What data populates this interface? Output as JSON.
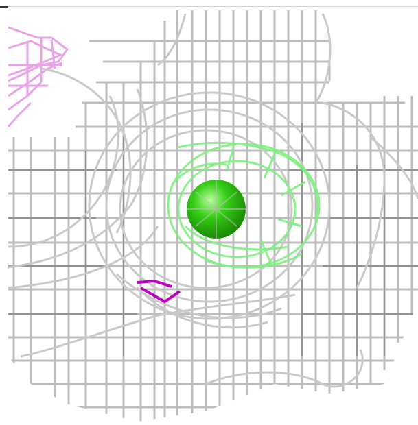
{
  "scene": {
    "description_hidden": "",
    "colors": {
      "background": "#ffffff",
      "mesh": "#bdbdbd",
      "mesh_dark": "#6f6f6f",
      "ligand_density": "#7df07d",
      "atom": "#33cc14",
      "atom_highlight": "#b8ff9a",
      "residue_pink": "#e69ae6",
      "residue_magenta": "#c000c0"
    },
    "icons": [
      "molecule-mesh-icon",
      "atom-sphere-icon"
    ]
  }
}
